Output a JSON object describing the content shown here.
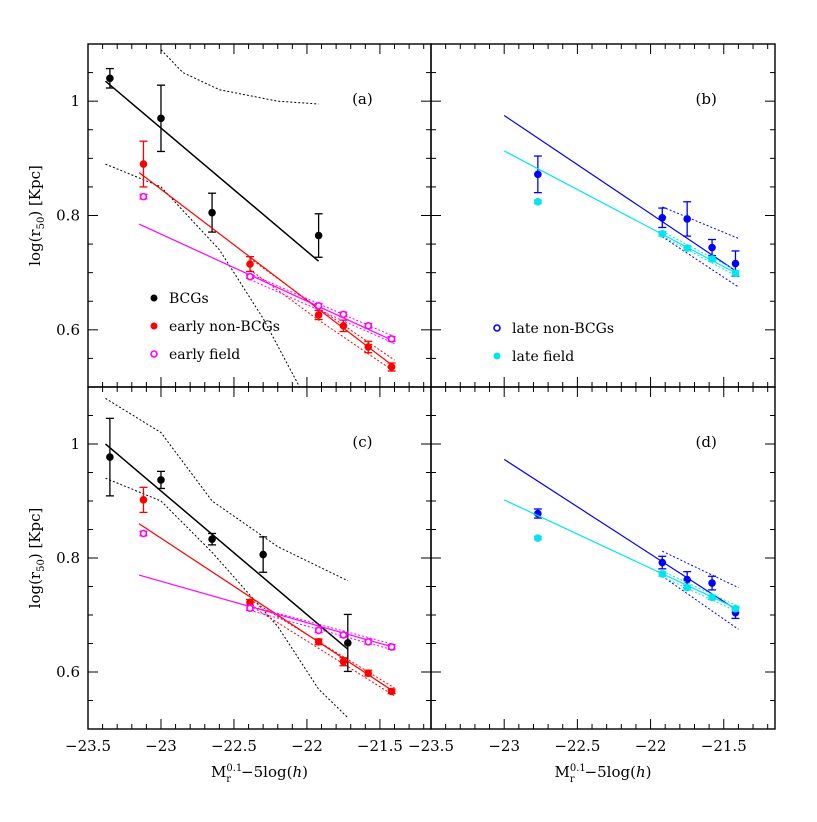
{
  "figure": {
    "xlabel": "M_r^{0.1} − 5log(h)",
    "ylabel": "log(r_50) [Kpc]",
    "x_ticks": [
      "−23.5",
      "−23",
      "−22.5",
      "−22",
      "−21.5"
    ],
    "y_ticks": [
      "1",
      "0.8",
      "0.6"
    ]
  },
  "chart_data": [
    {
      "type": "scatter",
      "panel": "(a)",
      "xlim": [
        -23.5,
        -21.15
      ],
      "ylim": [
        0.5,
        1.1
      ],
      "legend": {
        "placement": "bottom-left",
        "entries": [
          "BCGs",
          "early non-BCGs",
          "early field"
        ]
      },
      "series": [
        {
          "name": "BCGs",
          "color": "#000000",
          "marker": "filled-circle",
          "points": [
            {
              "x": -23.35,
              "y": 1.04,
              "err": 0.017
            },
            {
              "x": -23.0,
              "y": 0.97,
              "err": 0.058
            },
            {
              "x": -22.65,
              "y": 0.805,
              "err": 0.034
            },
            {
              "x": -21.92,
              "y": 0.765,
              "err": 0.038
            }
          ],
          "fit": [
            [
              -23.38,
              1.035
            ],
            [
              -21.92,
              0.72
            ]
          ],
          "band_upper": [
            [
              -23.0,
              1.09
            ],
            [
              -22.85,
              1.05
            ],
            [
              -22.6,
              1.02
            ],
            [
              -22.2,
              1.0
            ],
            [
              -21.92,
              0.995
            ]
          ],
          "band_lower": [
            [
              -23.38,
              0.89
            ],
            [
              -23.0,
              0.85
            ],
            [
              -22.6,
              0.74
            ],
            [
              -22.3,
              0.62
            ],
            [
              -22.05,
              0.5
            ]
          ]
        },
        {
          "name": "early non-BCGs",
          "color": "#ff0000",
          "marker": "filled-circle",
          "points": [
            {
              "x": -23.12,
              "y": 0.89,
              "err": 0.04
            },
            {
              "x": -22.39,
              "y": 0.715,
              "err": 0.013
            },
            {
              "x": -21.92,
              "y": 0.626,
              "err": 0.008
            },
            {
              "x": -21.75,
              "y": 0.607,
              "err": 0.01
            },
            {
              "x": -21.58,
              "y": 0.57,
              "err": 0.01
            },
            {
              "x": -21.42,
              "y": 0.535,
              "err": 0.007
            }
          ],
          "fit": [
            [
              -23.15,
              0.875
            ],
            [
              -21.4,
              0.535
            ]
          ],
          "band_upper": [
            [
              -22.39,
              0.725
            ],
            [
              -21.92,
              0.638
            ],
            [
              -21.4,
              0.547
            ]
          ],
          "band_lower": [
            [
              -22.39,
              0.705
            ],
            [
              -21.92,
              0.617
            ],
            [
              -21.4,
              0.527
            ]
          ]
        },
        {
          "name": "early field",
          "color": "#ff00ff",
          "marker": "open-circle",
          "points": [
            {
              "x": -23.12,
              "y": 0.833,
              "err": 0.004
            },
            {
              "x": -22.39,
              "y": 0.693,
              "err": 0.003
            },
            {
              "x": -21.92,
              "y": 0.642,
              "err": 0.004
            },
            {
              "x": -21.75,
              "y": 0.627,
              "err": 0.004
            },
            {
              "x": -21.58,
              "y": 0.607,
              "err": 0.004
            },
            {
              "x": -21.42,
              "y": 0.584,
              "err": 0.004
            }
          ],
          "fit": [
            [
              -23.15,
              0.785
            ],
            [
              -21.4,
              0.58
            ]
          ],
          "band_upper": [
            [
              -22.39,
              0.698
            ],
            [
              -21.4,
              0.588
            ]
          ],
          "band_lower": [
            [
              -22.39,
              0.688
            ],
            [
              -21.4,
              0.576
            ]
          ]
        }
      ]
    },
    {
      "type": "scatter",
      "panel": "(b)",
      "xlim": [
        -23.5,
        -21.15
      ],
      "ylim": [
        0.5,
        1.1
      ],
      "legend": {
        "placement": "bottom-left",
        "entries": [
          "late non-BCGs",
          "late field"
        ]
      },
      "series": [
        {
          "name": "late non-BCGs",
          "color": "#0000ff",
          "marker": "filled-circle",
          "points": [
            {
              "x": -22.77,
              "y": 0.872,
              "err": 0.032
            },
            {
              "x": -21.92,
              "y": 0.796,
              "err": 0.017
            },
            {
              "x": -21.75,
              "y": 0.794,
              "err": 0.03
            },
            {
              "x": -21.58,
              "y": 0.744,
              "err": 0.014
            },
            {
              "x": -21.42,
              "y": 0.716,
              "err": 0.022
            }
          ],
          "fit": [
            [
              -23.0,
              0.975
            ],
            [
              -21.4,
              0.7
            ]
          ],
          "band_upper": [
            [
              -21.92,
              0.815
            ],
            [
              -21.4,
              0.76
            ]
          ],
          "band_lower": [
            [
              -21.92,
              0.763
            ],
            [
              -21.4,
              0.675
            ]
          ]
        },
        {
          "name": "late field",
          "color": "#00e5ee",
          "marker": "filled-circle",
          "points": [
            {
              "x": -22.77,
              "y": 0.824,
              "err": 0.003
            },
            {
              "x": -21.92,
              "y": 0.768,
              "err": 0.004
            },
            {
              "x": -21.75,
              "y": 0.743,
              "err": 0.004
            },
            {
              "x": -21.58,
              "y": 0.724,
              "err": 0.004
            },
            {
              "x": -21.42,
              "y": 0.699,
              "err": 0.004
            }
          ],
          "fit": [
            [
              -23.0,
              0.913
            ],
            [
              -21.4,
              0.697
            ]
          ],
          "band_upper": [
            [
              -21.92,
              0.772
            ],
            [
              -21.4,
              0.702
            ]
          ],
          "band_lower": [
            [
              -21.92,
              0.764
            ],
            [
              -21.4,
              0.692
            ]
          ]
        }
      ]
    },
    {
      "type": "scatter",
      "panel": "(c)",
      "xlim": [
        -23.5,
        -21.15
      ],
      "ylim": [
        0.5,
        1.1
      ],
      "series": [
        {
          "name": "BCGs",
          "color": "#000000",
          "marker": "filled-circle",
          "points": [
            {
              "x": -23.35,
              "y": 0.977,
              "err": 0.068
            },
            {
              "x": -23.0,
              "y": 0.937,
              "err": 0.015
            },
            {
              "x": -22.65,
              "y": 0.833,
              "err": 0.01
            },
            {
              "x": -22.3,
              "y": 0.806,
              "err": 0.031
            },
            {
              "x": -21.72,
              "y": 0.651,
              "err": 0.05
            }
          ],
          "fit": [
            [
              -23.38,
              1.0
            ],
            [
              -21.72,
              0.64
            ]
          ],
          "band_upper": [
            [
              -23.38,
              1.08
            ],
            [
              -23.0,
              1.02
            ],
            [
              -22.65,
              0.9
            ],
            [
              -22.2,
              0.82
            ],
            [
              -21.72,
              0.76
            ]
          ],
          "band_lower": [
            [
              -23.38,
              0.94
            ],
            [
              -23.0,
              0.9
            ],
            [
              -22.65,
              0.81
            ],
            [
              -22.2,
              0.68
            ],
            [
              -21.92,
              0.57
            ],
            [
              -21.72,
              0.52
            ]
          ]
        },
        {
          "name": "early non-BCGs",
          "color": "#ff0000",
          "marker": "filled-circle",
          "points": [
            {
              "x": -23.12,
              "y": 0.902,
              "err": 0.022
            },
            {
              "x": -22.39,
              "y": 0.722,
              "err": 0.005
            },
            {
              "x": -21.92,
              "y": 0.653,
              "err": 0.005
            },
            {
              "x": -21.75,
              "y": 0.618,
              "err": 0.007
            },
            {
              "x": -21.58,
              "y": 0.598,
              "err": 0.005
            },
            {
              "x": -21.42,
              "y": 0.566,
              "err": 0.004
            }
          ],
          "fit": [
            [
              -23.15,
              0.86
            ],
            [
              -21.4,
              0.565
            ]
          ],
          "band_upper": [
            [
              -22.39,
              0.727
            ],
            [
              -21.4,
              0.572
            ]
          ],
          "band_lower": [
            [
              -22.39,
              0.717
            ],
            [
              -21.4,
              0.558
            ]
          ]
        },
        {
          "name": "early field",
          "color": "#ff00ff",
          "marker": "open-circle",
          "points": [
            {
              "x": -23.12,
              "y": 0.843,
              "err": 0.004
            },
            {
              "x": -22.39,
              "y": 0.712,
              "err": 0.004
            },
            {
              "x": -21.92,
              "y": 0.673,
              "err": 0.004
            },
            {
              "x": -21.75,
              "y": 0.665,
              "err": 0.004
            },
            {
              "x": -21.58,
              "y": 0.653,
              "err": 0.004
            },
            {
              "x": -21.42,
              "y": 0.644,
              "err": 0.004
            }
          ],
          "fit": [
            [
              -23.15,
              0.77
            ],
            [
              -21.4,
              0.643
            ]
          ],
          "band_upper": [
            [
              -22.39,
              0.716
            ],
            [
              -21.4,
              0.648
            ]
          ],
          "band_lower": [
            [
              -22.39,
              0.708
            ],
            [
              -21.4,
              0.638
            ]
          ]
        }
      ]
    },
    {
      "type": "scatter",
      "panel": "(d)",
      "xlim": [
        -23.5,
        -21.15
      ],
      "ylim": [
        0.5,
        1.1
      ],
      "series": [
        {
          "name": "late non-BCGs",
          "color": "#0000ff",
          "marker": "filled-circle",
          "points": [
            {
              "x": -22.77,
              "y": 0.878,
              "err": 0.008
            },
            {
              "x": -21.92,
              "y": 0.792,
              "err": 0.011
            },
            {
              "x": -21.75,
              "y": 0.762,
              "err": 0.014
            },
            {
              "x": -21.58,
              "y": 0.756,
              "err": 0.012
            },
            {
              "x": -21.42,
              "y": 0.704,
              "err": 0.01
            }
          ],
          "fit": [
            [
              -23.0,
              0.973
            ],
            [
              -21.4,
              0.707
            ]
          ],
          "band_upper": [
            [
              -21.92,
              0.812
            ],
            [
              -21.4,
              0.748
            ]
          ],
          "band_lower": [
            [
              -21.92,
              0.768
            ],
            [
              -21.4,
              0.675
            ]
          ]
        },
        {
          "name": "late field",
          "color": "#00e5ee",
          "marker": "filled-circle",
          "points": [
            {
              "x": -22.77,
              "y": 0.835,
              "err": 0.003
            },
            {
              "x": -21.92,
              "y": 0.772,
              "err": 0.004
            },
            {
              "x": -21.75,
              "y": 0.748,
              "err": 0.004
            },
            {
              "x": -21.58,
              "y": 0.731,
              "err": 0.004
            },
            {
              "x": -21.42,
              "y": 0.711,
              "err": 0.004
            }
          ],
          "fit": [
            [
              -23.0,
              0.902
            ],
            [
              -21.4,
              0.71
            ]
          ],
          "band_upper": [
            [
              -21.92,
              0.777
            ],
            [
              -21.4,
              0.715
            ]
          ],
          "band_lower": [
            [
              -21.92,
              0.767
            ],
            [
              -21.4,
              0.705
            ]
          ]
        }
      ]
    }
  ]
}
